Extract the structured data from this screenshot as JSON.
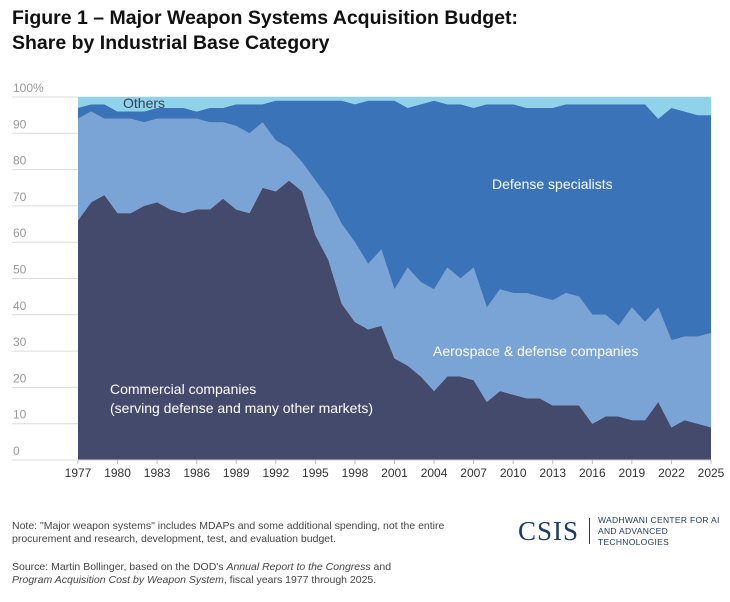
{
  "title_line1": "Figure 1 – Major Weapon Systems Acquisition Budget:",
  "title_line2": "Share by Industrial Base Category",
  "chart_data": {
    "type": "area",
    "stacked": true,
    "ylim": [
      0,
      100
    ],
    "y_ticks": [
      "100%",
      "90",
      "80",
      "70",
      "60",
      "50",
      "40",
      "30",
      "20",
      "10",
      "0"
    ],
    "x_tick_labels": [
      1977,
      1980,
      1983,
      1986,
      1989,
      1992,
      1995,
      1998,
      2001,
      2004,
      2007,
      2010,
      2013,
      2016,
      2019,
      2022,
      2025
    ],
    "grid": true,
    "x": [
      1977,
      1978,
      1979,
      1980,
      1981,
      1982,
      1983,
      1984,
      1985,
      1986,
      1987,
      1988,
      1989,
      1990,
      1991,
      1992,
      1993,
      1994,
      1995,
      1996,
      1997,
      1998,
      1999,
      2000,
      2001,
      2002,
      2003,
      2004,
      2005,
      2006,
      2007,
      2008,
      2009,
      2010,
      2011,
      2012,
      2013,
      2014,
      2015,
      2016,
      2017,
      2018,
      2019,
      2020,
      2021,
      2022,
      2023,
      2024,
      2025
    ],
    "series": [
      {
        "name": "Commercial companies\n(serving defense and many other markets)",
        "color": "#444a6b",
        "values": [
          66,
          71,
          73,
          68,
          68,
          70,
          71,
          69,
          68,
          69,
          69,
          72,
          69,
          68,
          75,
          74,
          77,
          74,
          62,
          55,
          43,
          38,
          36,
          37,
          28,
          26,
          23,
          19,
          23,
          23,
          22,
          16,
          19,
          18,
          17,
          17,
          15,
          15,
          15,
          10,
          12,
          12,
          11,
          11,
          16,
          9,
          11,
          10,
          9
        ]
      },
      {
        "name": "Aerospace & defense companies",
        "color": "#7aa3d6",
        "values": [
          28,
          25,
          21,
          26,
          26,
          23,
          23,
          25,
          26,
          25,
          24,
          21,
          23,
          22,
          18,
          14,
          9,
          8,
          15,
          17,
          22,
          22,
          18,
          21,
          19,
          27,
          26,
          28,
          30,
          27,
          31,
          26,
          28,
          28,
          29,
          28,
          29,
          31,
          30,
          30,
          28,
          25,
          31,
          27,
          26,
          24,
          23,
          24,
          26
        ]
      },
      {
        "name": "Defense specialists",
        "color": "#3a73b8",
        "values": [
          3,
          2,
          4,
          2,
          2,
          3,
          3,
          3,
          3,
          2,
          4,
          4,
          6,
          8,
          5,
          11,
          13,
          17,
          22,
          27,
          34,
          38,
          45,
          41,
          52,
          44,
          49,
          52,
          45,
          48,
          44,
          56,
          51,
          52,
          51,
          52,
          53,
          52,
          53,
          58,
          58,
          61,
          56,
          60,
          52,
          64,
          62,
          61,
          60
        ]
      },
      {
        "name": "Others",
        "color": "#8fd3eb",
        "values": [
          3,
          2,
          2,
          4,
          4,
          4,
          3,
          3,
          3,
          4,
          3,
          3,
          2,
          2,
          2,
          1,
          1,
          1,
          1,
          1,
          1,
          2,
          1,
          1,
          1,
          3,
          2,
          1,
          2,
          2,
          3,
          2,
          2,
          2,
          3,
          3,
          3,
          2,
          2,
          2,
          2,
          2,
          2,
          2,
          6,
          3,
          4,
          5,
          5
        ]
      }
    ],
    "annotations": {
      "others": "Others",
      "defense": "Defense specialists",
      "aerospace": "Aerospace & defense companies",
      "commercial_line1": "Commercial companies",
      "commercial_line2": "(serving defense and many other markets)"
    }
  },
  "note_text": "Note: \"Major weapon systems\" includes MDAPs and some additional spending, not the entire procurement and research, development, test, and evaluation budget.",
  "source": {
    "prefix": "Source: Martin Bollinger, based on the DOD's ",
    "italic1": "Annual Report to the Congress",
    "mid": " and ",
    "italic2": "Program Acquisition Cost by Weapon System",
    "suffix": ", fiscal years 1977 through 2025."
  },
  "brand": {
    "logo": "CSIS",
    "line1": "WADHWANI CENTER FOR AI",
    "line2": "AND ADVANCED TECHNOLOGIES"
  }
}
